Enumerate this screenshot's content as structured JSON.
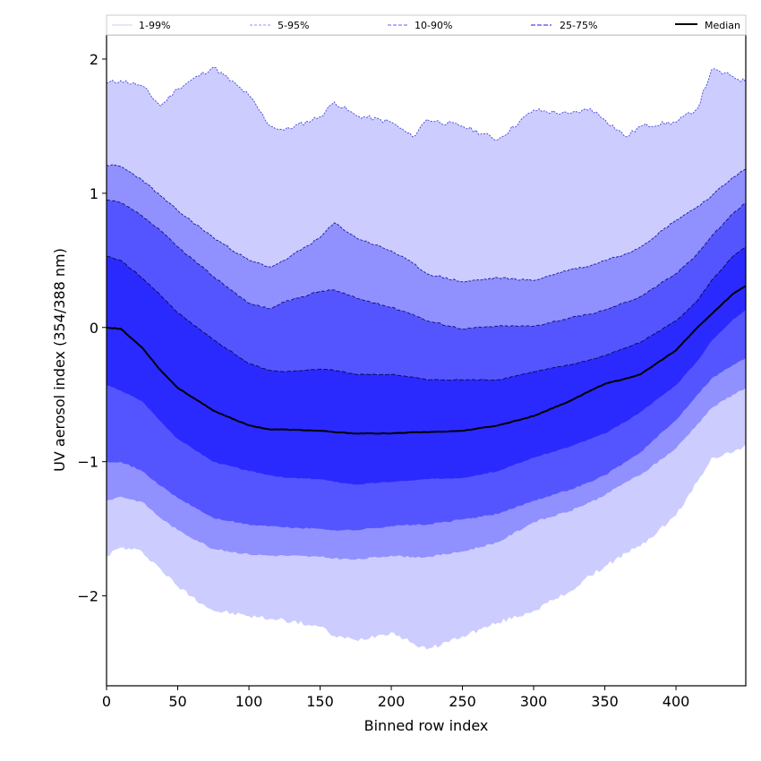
{
  "chart_data": {
    "type": "area",
    "title": "",
    "xlabel": "Binned row index",
    "ylabel": "UV aerosol index (354/388 nm)",
    "xlim": [
      0,
      449
    ],
    "ylim": [
      -2.67,
      2.18
    ],
    "grid": false,
    "legend_position": "top",
    "xticks": [
      0,
      50,
      100,
      150,
      200,
      250,
      300,
      350,
      400
    ],
    "xtick_labels": [
      "0",
      "50",
      "100",
      "150",
      "200",
      "250",
      "300",
      "350",
      "400"
    ],
    "yticks": [
      2,
      1,
      0,
      -1,
      -2
    ],
    "ytick_labels": [
      "2",
      "1",
      "0",
      "−1",
      "−2"
    ],
    "legend": [
      {
        "label": "1-99%",
        "color": "#ccccff",
        "style": "solid"
      },
      {
        "label": "5-95%",
        "color": "#9090ff",
        "style": "dashed"
      },
      {
        "label": "10-90%",
        "color": "#5555ff",
        "style": "dashed"
      },
      {
        "label": "25-75%",
        "color": "#2a2aff",
        "style": "dashed"
      },
      {
        "label": "Median",
        "color": "#000000",
        "style": "solid"
      }
    ],
    "x": [
      0,
      10,
      25,
      38,
      50,
      75,
      100,
      115,
      125,
      150,
      160,
      175,
      200,
      215,
      225,
      250,
      275,
      300,
      325,
      340,
      350,
      365,
      375,
      400,
      415,
      425,
      440,
      449
    ],
    "series": [
      {
        "name": "P99",
        "values": [
          1.82,
          1.84,
          1.8,
          1.65,
          1.78,
          1.94,
          1.73,
          1.5,
          1.47,
          1.57,
          1.68,
          1.58,
          1.53,
          1.42,
          1.55,
          1.5,
          1.4,
          1.62,
          1.59,
          1.63,
          1.55,
          1.42,
          1.5,
          1.53,
          1.63,
          1.92,
          1.87,
          1.83
        ]
      },
      {
        "name": "P95",
        "values": [
          1.21,
          1.2,
          1.1,
          0.98,
          0.87,
          0.67,
          0.5,
          0.45,
          0.5,
          0.67,
          0.78,
          0.67,
          0.57,
          0.48,
          0.4,
          0.34,
          0.37,
          0.35,
          0.43,
          0.46,
          0.5,
          0.55,
          0.6,
          0.8,
          0.9,
          0.98,
          1.12,
          1.18
        ]
      },
      {
        "name": "P90",
        "values": [
          0.95,
          0.93,
          0.83,
          0.72,
          0.6,
          0.38,
          0.18,
          0.14,
          0.19,
          0.27,
          0.28,
          0.22,
          0.15,
          0.1,
          0.05,
          -0.01,
          0.01,
          0.01,
          0.07,
          0.1,
          0.13,
          0.19,
          0.23,
          0.4,
          0.55,
          0.68,
          0.85,
          0.93
        ]
      },
      {
        "name": "P75",
        "values": [
          0.53,
          0.5,
          0.37,
          0.24,
          0.11,
          -0.09,
          -0.27,
          -0.32,
          -0.33,
          -0.31,
          -0.32,
          -0.35,
          -0.35,
          -0.37,
          -0.39,
          -0.39,
          -0.39,
          -0.33,
          -0.28,
          -0.24,
          -0.21,
          -0.15,
          -0.11,
          0.05,
          0.2,
          0.35,
          0.53,
          0.6
        ]
      },
      {
        "name": "Median",
        "values": [
          0.0,
          -0.01,
          -0.15,
          -0.32,
          -0.45,
          -0.62,
          -0.73,
          -0.76,
          -0.76,
          -0.77,
          -0.78,
          -0.79,
          -0.79,
          -0.78,
          -0.78,
          -0.77,
          -0.73,
          -0.66,
          -0.55,
          -0.47,
          -0.42,
          -0.38,
          -0.35,
          -0.17,
          0.0,
          0.1,
          0.25,
          0.31
        ]
      },
      {
        "name": "P25",
        "values": [
          -0.43,
          -0.47,
          -0.55,
          -0.7,
          -0.83,
          -1.0,
          -1.07,
          -1.1,
          -1.12,
          -1.13,
          -1.15,
          -1.17,
          -1.15,
          -1.14,
          -1.13,
          -1.12,
          -1.07,
          -0.97,
          -0.89,
          -0.83,
          -0.79,
          -0.7,
          -0.63,
          -0.43,
          -0.25,
          -0.1,
          0.06,
          0.13
        ]
      },
      {
        "name": "P10",
        "values": [
          -1.0,
          -1.0,
          -1.07,
          -1.18,
          -1.27,
          -1.42,
          -1.47,
          -1.48,
          -1.49,
          -1.5,
          -1.51,
          -1.51,
          -1.48,
          -1.47,
          -1.47,
          -1.43,
          -1.39,
          -1.29,
          -1.21,
          -1.15,
          -1.1,
          -1.0,
          -0.93,
          -0.69,
          -0.5,
          -0.38,
          -0.28,
          -0.23
        ]
      },
      {
        "name": "P5",
        "values": [
          -1.29,
          -1.26,
          -1.3,
          -1.42,
          -1.51,
          -1.65,
          -1.69,
          -1.7,
          -1.7,
          -1.71,
          -1.72,
          -1.73,
          -1.7,
          -1.71,
          -1.71,
          -1.67,
          -1.6,
          -1.45,
          -1.37,
          -1.3,
          -1.25,
          -1.15,
          -1.1,
          -0.9,
          -0.72,
          -0.6,
          -0.5,
          -0.45
        ]
      },
      {
        "name": "P1",
        "values": [
          -1.7,
          -1.64,
          -1.67,
          -1.8,
          -1.93,
          -2.11,
          -2.15,
          -2.17,
          -2.18,
          -2.23,
          -2.3,
          -2.33,
          -2.27,
          -2.35,
          -2.4,
          -2.3,
          -2.2,
          -2.11,
          -1.97,
          -1.85,
          -1.78,
          -1.68,
          -1.63,
          -1.4,
          -1.15,
          -0.97,
          -0.93,
          -0.87
        ]
      }
    ],
    "bands": [
      {
        "label": "1-99%",
        "lower": "P1",
        "upper": "P99",
        "fill": "#ccccff",
        "edge": "#4444dd"
      },
      {
        "label": "5-95%",
        "lower": "P5",
        "upper": "P95",
        "fill": "#9090ff",
        "edge": "#1a1aa0"
      },
      {
        "label": "10-90%",
        "lower": "P10",
        "upper": "P90",
        "fill": "#5555ff",
        "edge": "#10107a"
      },
      {
        "label": "25-75%",
        "lower": "P25",
        "upper": "P75",
        "fill": "#2a2aff",
        "edge": "#0a0a50"
      }
    ]
  }
}
